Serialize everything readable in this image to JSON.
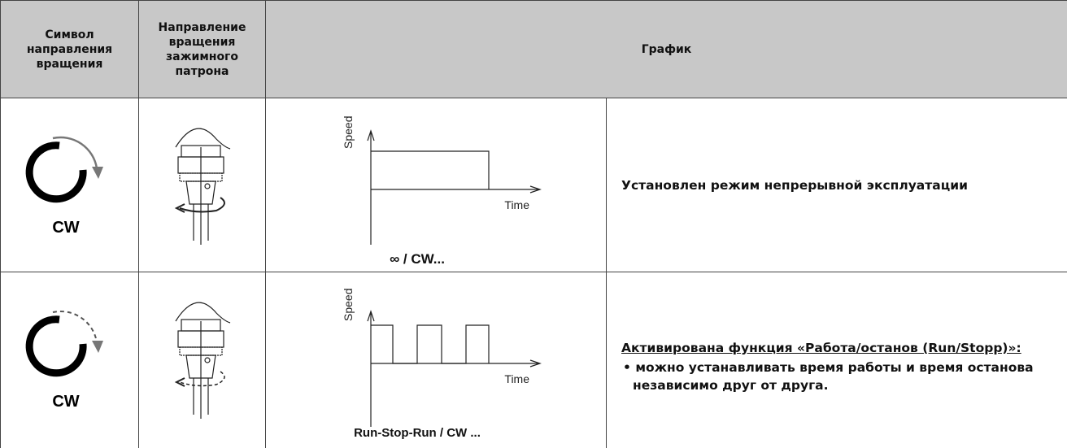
{
  "header": {
    "columns": [
      {
        "lines": [
          "Символ",
          "направления",
          "вращения"
        ]
      },
      {
        "lines": [
          "Направление",
          "вращения",
          "зажимного",
          "патрона"
        ]
      },
      {
        "lines": [
          "График"
        ]
      }
    ]
  },
  "rows": [
    {
      "symbol": "CW",
      "y_axis": "Speed",
      "x_axis": "Time",
      "caption": "∞ / CW...",
      "description": "Установлен режим непрерывной эксплуатации"
    },
    {
      "symbol": "CW",
      "y_axis": "Speed",
      "x_axis": "Time",
      "caption": "Run-Stop-Run / CW ...",
      "description_title": "Активирована функция «Работа/останов (Run/Stopp)»:",
      "bullets": [
        "можно устанавливать время работы и время останова независимо друг от друга."
      ]
    }
  ]
}
